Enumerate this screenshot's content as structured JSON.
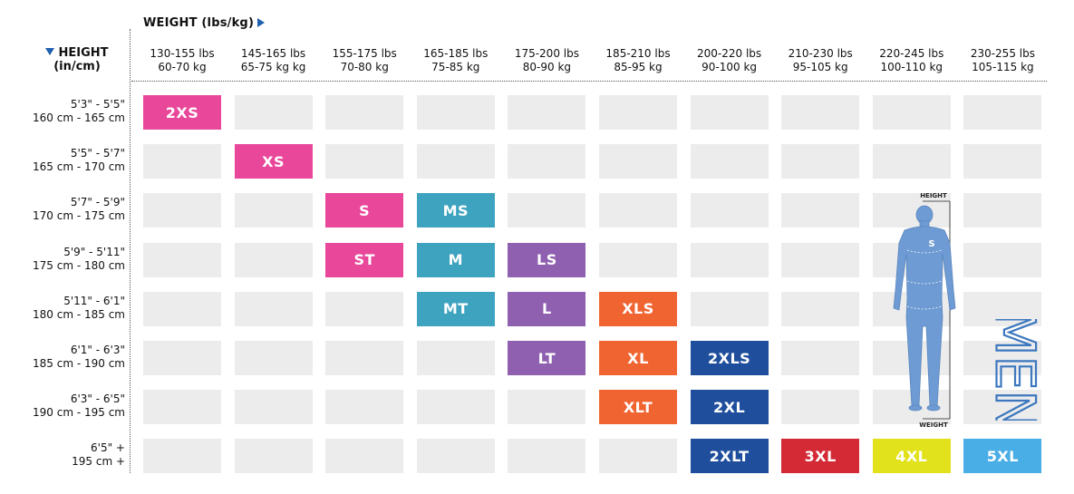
{
  "weight_header": "WEIGHT (lbs/kg)",
  "height_header": {
    "line1": "HEIGHT",
    "line2": "(in/cm)"
  },
  "columns": [
    {
      "lbs": "130-155 lbs",
      "kg": "60-70 kg"
    },
    {
      "lbs": "145-165 lbs",
      "kg": "65-75 kg kg"
    },
    {
      "lbs": "155-175 lbs",
      "kg": "70-80 kg"
    },
    {
      "lbs": "165-185 lbs",
      "kg": "75-85 kg"
    },
    {
      "lbs": "175-200 lbs",
      "kg": "80-90 kg"
    },
    {
      "lbs": "185-210 lbs",
      "kg": "85-95 kg"
    },
    {
      "lbs": "200-220 lbs",
      "kg": "90-100 kg"
    },
    {
      "lbs": "210-230 lbs",
      "kg": "95-105 kg"
    },
    {
      "lbs": "220-245 lbs",
      "kg": "100-110 kg"
    },
    {
      "lbs": "230-255 lbs",
      "kg": "105-115 kg"
    }
  ],
  "rows": [
    {
      "in": "5'3\" - 5'5\"",
      "cm": "160 cm - 165 cm"
    },
    {
      "in": "5'5\" - 5'7\"",
      "cm": "165 cm - 170 cm"
    },
    {
      "in": "5'7\" - 5'9\"",
      "cm": "170 cm - 175 cm"
    },
    {
      "in": "5'9\" - 5'11\"",
      "cm": "175 cm - 180 cm"
    },
    {
      "in": "5'11\" - 6'1\"",
      "cm": "180 cm - 185 cm"
    },
    {
      "in": "6'1\" - 6'3\"",
      "cm": "185 cm - 190 cm"
    },
    {
      "in": "6'3\" - 6'5\"",
      "cm": "190 cm - 195 cm"
    },
    {
      "in": "6'5\" +",
      "cm": "195 cm +"
    }
  ],
  "sizes": [
    {
      "label": "2XS",
      "row": 0,
      "col": 0,
      "color": "#e8479a"
    },
    {
      "label": "XS",
      "row": 1,
      "col": 1,
      "color": "#e8479a"
    },
    {
      "label": "S",
      "row": 2,
      "col": 2,
      "color": "#e8479a"
    },
    {
      "label": "MS",
      "row": 2,
      "col": 3,
      "color": "#3ea3bf"
    },
    {
      "label": "ST",
      "row": 3,
      "col": 2,
      "color": "#e8479a"
    },
    {
      "label": "M",
      "row": 3,
      "col": 3,
      "color": "#3ea3bf"
    },
    {
      "label": "LS",
      "row": 3,
      "col": 4,
      "color": "#8f5fb0"
    },
    {
      "label": "MT",
      "row": 4,
      "col": 3,
      "color": "#3ea3bf"
    },
    {
      "label": "L",
      "row": 4,
      "col": 4,
      "color": "#8f5fb0"
    },
    {
      "label": "XLS",
      "row": 4,
      "col": 5,
      "color": "#f06431"
    },
    {
      "label": "LT",
      "row": 5,
      "col": 4,
      "color": "#8f5fb0"
    },
    {
      "label": "XL",
      "row": 5,
      "col": 5,
      "color": "#f06431"
    },
    {
      "label": "2XLS",
      "row": 5,
      "col": 6,
      "color": "#1f4f9c"
    },
    {
      "label": "XLT",
      "row": 6,
      "col": 5,
      "color": "#f06431"
    },
    {
      "label": "2XL",
      "row": 6,
      "col": 6,
      "color": "#1f4f9c"
    },
    {
      "label": "2XLT",
      "row": 7,
      "col": 6,
      "color": "#1f4f9c"
    },
    {
      "label": "3XL",
      "row": 7,
      "col": 7,
      "color": "#d32a36"
    },
    {
      "label": "4XL",
      "row": 7,
      "col": 8,
      "color": "#e2e21c"
    },
    {
      "label": "5XL",
      "row": 7,
      "col": 9,
      "color": "#4aaee6"
    }
  ],
  "figure": {
    "height_label": "HEIGHT",
    "weight_label": "WEIGHT",
    "logo_glyph": "S",
    "suit_color": "#6e9bd3",
    "icon": "wetsuit-figure-icon"
  },
  "men_label": "MEN",
  "colors": {
    "cell_bg": "#ececec",
    "arrow": "#1e5fae",
    "men": "#3c77bf"
  }
}
